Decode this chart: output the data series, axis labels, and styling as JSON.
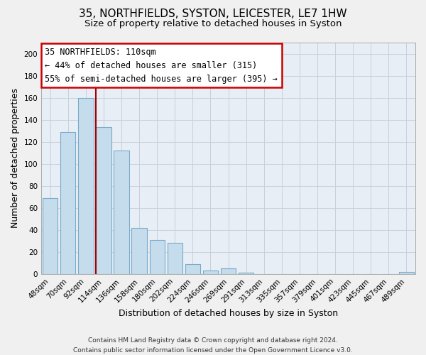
{
  "title": "35, NORTHFIELDS, SYSTON, LEICESTER, LE7 1HW",
  "subtitle": "Size of property relative to detached houses in Syston",
  "xlabel": "Distribution of detached houses by size in Syston",
  "ylabel": "Number of detached properties",
  "footer_lines": [
    "Contains HM Land Registry data © Crown copyright and database right 2024.",
    "Contains public sector information licensed under the Open Government Licence v3.0."
  ],
  "bar_labels": [
    "48sqm",
    "70sqm",
    "92sqm",
    "114sqm",
    "136sqm",
    "158sqm",
    "180sqm",
    "202sqm",
    "224sqm",
    "246sqm",
    "269sqm",
    "291sqm",
    "313sqm",
    "335sqm",
    "357sqm",
    "379sqm",
    "401sqm",
    "423sqm",
    "445sqm",
    "467sqm",
    "489sqm"
  ],
  "bar_values": [
    69,
    129,
    160,
    133,
    112,
    42,
    31,
    28,
    9,
    3,
    5,
    1,
    0,
    0,
    0,
    0,
    0,
    0,
    0,
    0,
    2
  ],
  "bar_color": "#c5dced",
  "bar_edge_color": "#7aaac8",
  "vline_color": "#aa0000",
  "vline_x_index": 2.57,
  "ylim": [
    0,
    210
  ],
  "yticks": [
    0,
    20,
    40,
    60,
    80,
    100,
    120,
    140,
    160,
    180,
    200
  ],
  "annotation_box_text": "35 NORTHFIELDS: 110sqm",
  "annotation_line1": "← 44% of detached houses are smaller (315)",
  "annotation_line2": "55% of semi-detached houses are larger (395) →",
  "annotation_box_color": "#ffffff",
  "annotation_box_edge": "#cc0000",
  "title_fontsize": 11,
  "subtitle_fontsize": 9.5,
  "axis_label_fontsize": 9,
  "tick_fontsize": 7.5,
  "annotation_fontsize": 8.5,
  "footer_fontsize": 6.5,
  "bg_color": "#f0f0f0",
  "plot_bg_color": "#e8eef5",
  "grid_color": "#c8d0da"
}
